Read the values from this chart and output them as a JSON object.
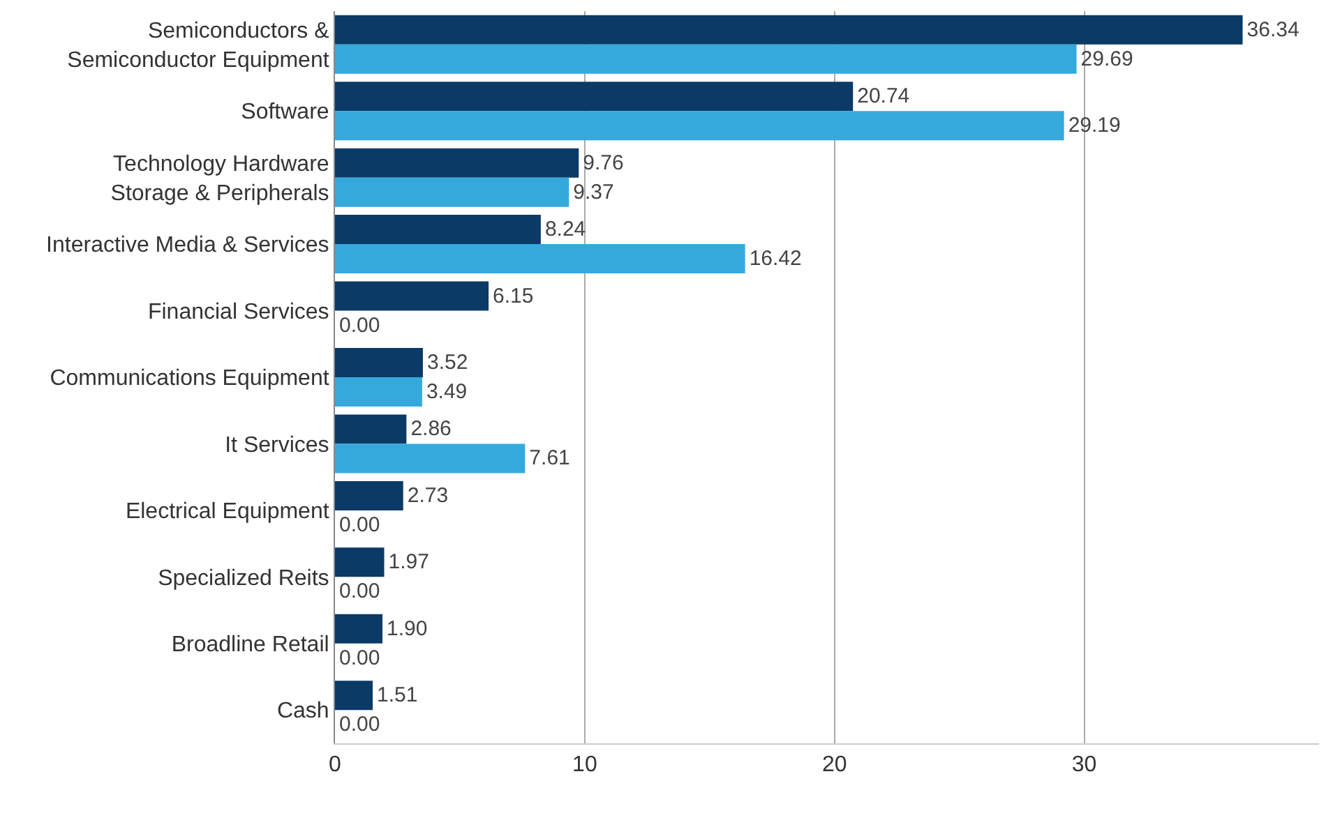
{
  "chart_data": {
    "type": "bar",
    "orientation": "horizontal",
    "categories": [
      "Semiconductors &\nSemiconductor Equipment",
      "Software",
      "Technology Hardware\nStorage & Peripherals",
      "Interactive Media & Services",
      "Financial Services",
      "Communications Equipment",
      "It Services",
      "Electrical Equipment",
      "Specialized Reits",
      "Broadline Retail",
      "Cash"
    ],
    "series": [
      {
        "color": "#0b3a66",
        "values": [
          36.34,
          20.74,
          9.76,
          8.24,
          6.15,
          3.52,
          2.86,
          2.73,
          1.97,
          1.9,
          1.51
        ],
        "value_labels": [
          "36.34",
          "20.74",
          "9.76",
          "8.24",
          "6.15",
          "3.52",
          "2.86",
          "2.73",
          "1.97",
          "1.90",
          "1.51"
        ]
      },
      {
        "color": "#36a9dc",
        "values": [
          29.69,
          29.19,
          9.37,
          16.42,
          0,
          3.49,
          7.61,
          0,
          0,
          0,
          0
        ],
        "value_labels": [
          "29.69",
          "29.19",
          "9.37",
          "16.42",
          "0.00",
          "3.49",
          "7.61",
          "0.00",
          "0.00",
          "0.00",
          "0.00"
        ]
      }
    ],
    "xlim": [
      0,
      39.4
    ],
    "xticks": [
      0,
      10,
      20,
      30
    ],
    "grid": "x"
  }
}
